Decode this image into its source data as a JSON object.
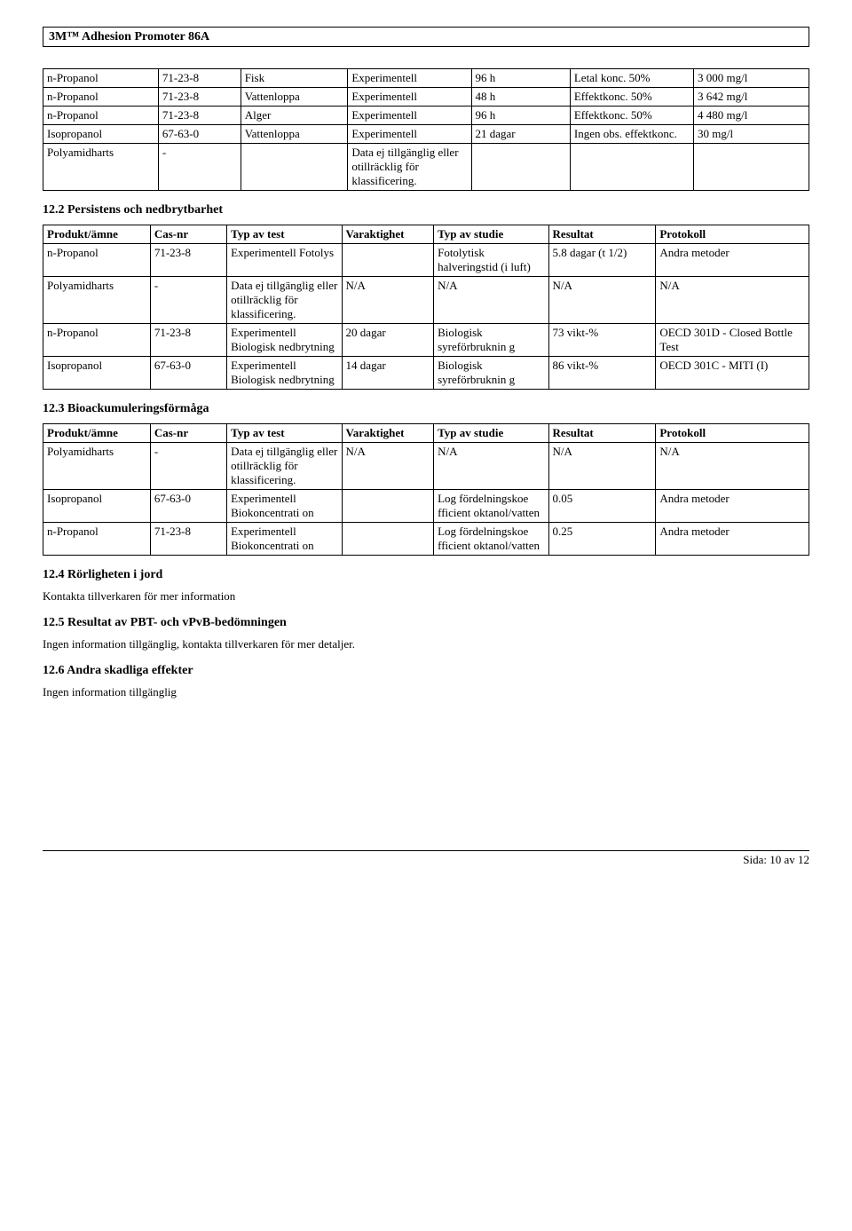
{
  "document": {
    "title": "3M™ Adhesion Promoter 86A",
    "footer": "Sida: 10 av  12"
  },
  "table1": {
    "rows": [
      {
        "name": "n-Propanol",
        "cas": "71-23-8",
        "material": "Fisk",
        "test": "Experimentell",
        "varaktighet": "96 h",
        "studie": "Letal konc. 50%",
        "resultat": "3 000 mg/l"
      },
      {
        "name": "n-Propanol",
        "cas": "71-23-8",
        "material": "Vattenloppa",
        "test": "Experimentell",
        "varaktighet": "48 h",
        "studie": "Effektkonc. 50%",
        "resultat": "3 642 mg/l"
      },
      {
        "name": "n-Propanol",
        "cas": "71-23-8",
        "material": "Alger",
        "test": "Experimentell",
        "varaktighet": "96 h",
        "studie": "Effektkonc. 50%",
        "resultat": "4 480 mg/l"
      },
      {
        "name": "Isopropanol",
        "cas": "67-63-0",
        "material": "Vattenloppa",
        "test": "Experimentell",
        "varaktighet": "21 dagar",
        "studie": "Ingen obs. effektkonc.",
        "resultat": "30 mg/l"
      },
      {
        "name": "Polyamidharts",
        "cas": "-",
        "material": "",
        "test": "Data ej tillgänglig eller otillräcklig för klassificering.",
        "varaktighet": "",
        "studie": "",
        "resultat": ""
      }
    ]
  },
  "section12_2": {
    "heading": "12.2 Persistens och nedbrytbarhet",
    "headers": {
      "c1": "Produkt/ämne",
      "c2": "Cas-nr",
      "c3": "Typ av test",
      "c4": "Varaktighet",
      "c5": "Typ av studie",
      "c6": "Resultat",
      "c7": "Protokoll"
    },
    "rows": [
      {
        "name": "n-Propanol",
        "cas": "71-23-8",
        "test": "Experimentell Fotolys",
        "varaktighet": "",
        "studie": "Fotolytisk halveringstid (i luft)",
        "resultat": "5.8 dagar (t 1/2)",
        "protokoll": "Andra metoder"
      },
      {
        "name": "Polyamidharts",
        "cas": "-",
        "test": " Data ej tillgänglig eller otillräcklig för klassificering.",
        "varaktighet": "N/A",
        "studie": "N/A",
        "resultat": "N/A",
        "protokoll": "N/A"
      },
      {
        "name": "n-Propanol",
        "cas": "71-23-8",
        "test": "Experimentell Biologisk nedbrytning",
        "varaktighet": "20 dagar",
        "studie": "Biologisk syreförbruknin g",
        "resultat": "73 vikt-%",
        "protokoll": "OECD 301D - Closed Bottle Test"
      },
      {
        "name": "Isopropanol",
        "cas": "67-63-0",
        "test": "Experimentell Biologisk nedbrytning",
        "varaktighet": "14 dagar",
        "studie": "Biologisk syreförbruknin g",
        "resultat": "86 vikt-%",
        "protokoll": "OECD 301C - MITI (I)"
      }
    ]
  },
  "section12_3": {
    "heading": "12.3 Bioackumuleringsförmåga",
    "headers": {
      "c1": "Produkt/ämne",
      "c2": "Cas-nr",
      "c3": "Typ av test",
      "c4": "Varaktighet",
      "c5": "Typ av studie",
      "c6": "Resultat",
      "c7": "Protokoll"
    },
    "rows": [
      {
        "name": "Polyamidharts",
        "cas": "-",
        "test": " Data ej tillgänglig eller otillräcklig för klassificering.",
        "varaktighet": "N/A",
        "studie": "N/A",
        "resultat": "N/A",
        "protokoll": "N/A"
      },
      {
        "name": "Isopropanol",
        "cas": "67-63-0",
        "test": "Experimentell Biokoncentrati on",
        "varaktighet": "",
        "studie": "Log fördelningskoe fficient oktanol/vatten",
        "resultat": "0.05",
        "protokoll": "Andra metoder"
      },
      {
        "name": "n-Propanol",
        "cas": "71-23-8",
        "test": "Experimentell Biokoncentrati on",
        "varaktighet": "",
        "studie": "Log fördelningskoe fficient oktanol/vatten",
        "resultat": "0.25",
        "protokoll": "Andra metoder"
      }
    ]
  },
  "section12_4": {
    "heading": "12.4 Rörligheten i jord",
    "text": "Kontakta tillverkaren för mer information"
  },
  "section12_5": {
    "heading": "12.5 Resultat av PBT- och vPvB-bedömningen",
    "text": "Ingen information tillgänglig, kontakta tillverkaren för mer detaljer."
  },
  "section12_6": {
    "heading": "12.6 Andra skadliga effekter",
    "text": "Ingen information tillgänglig"
  }
}
